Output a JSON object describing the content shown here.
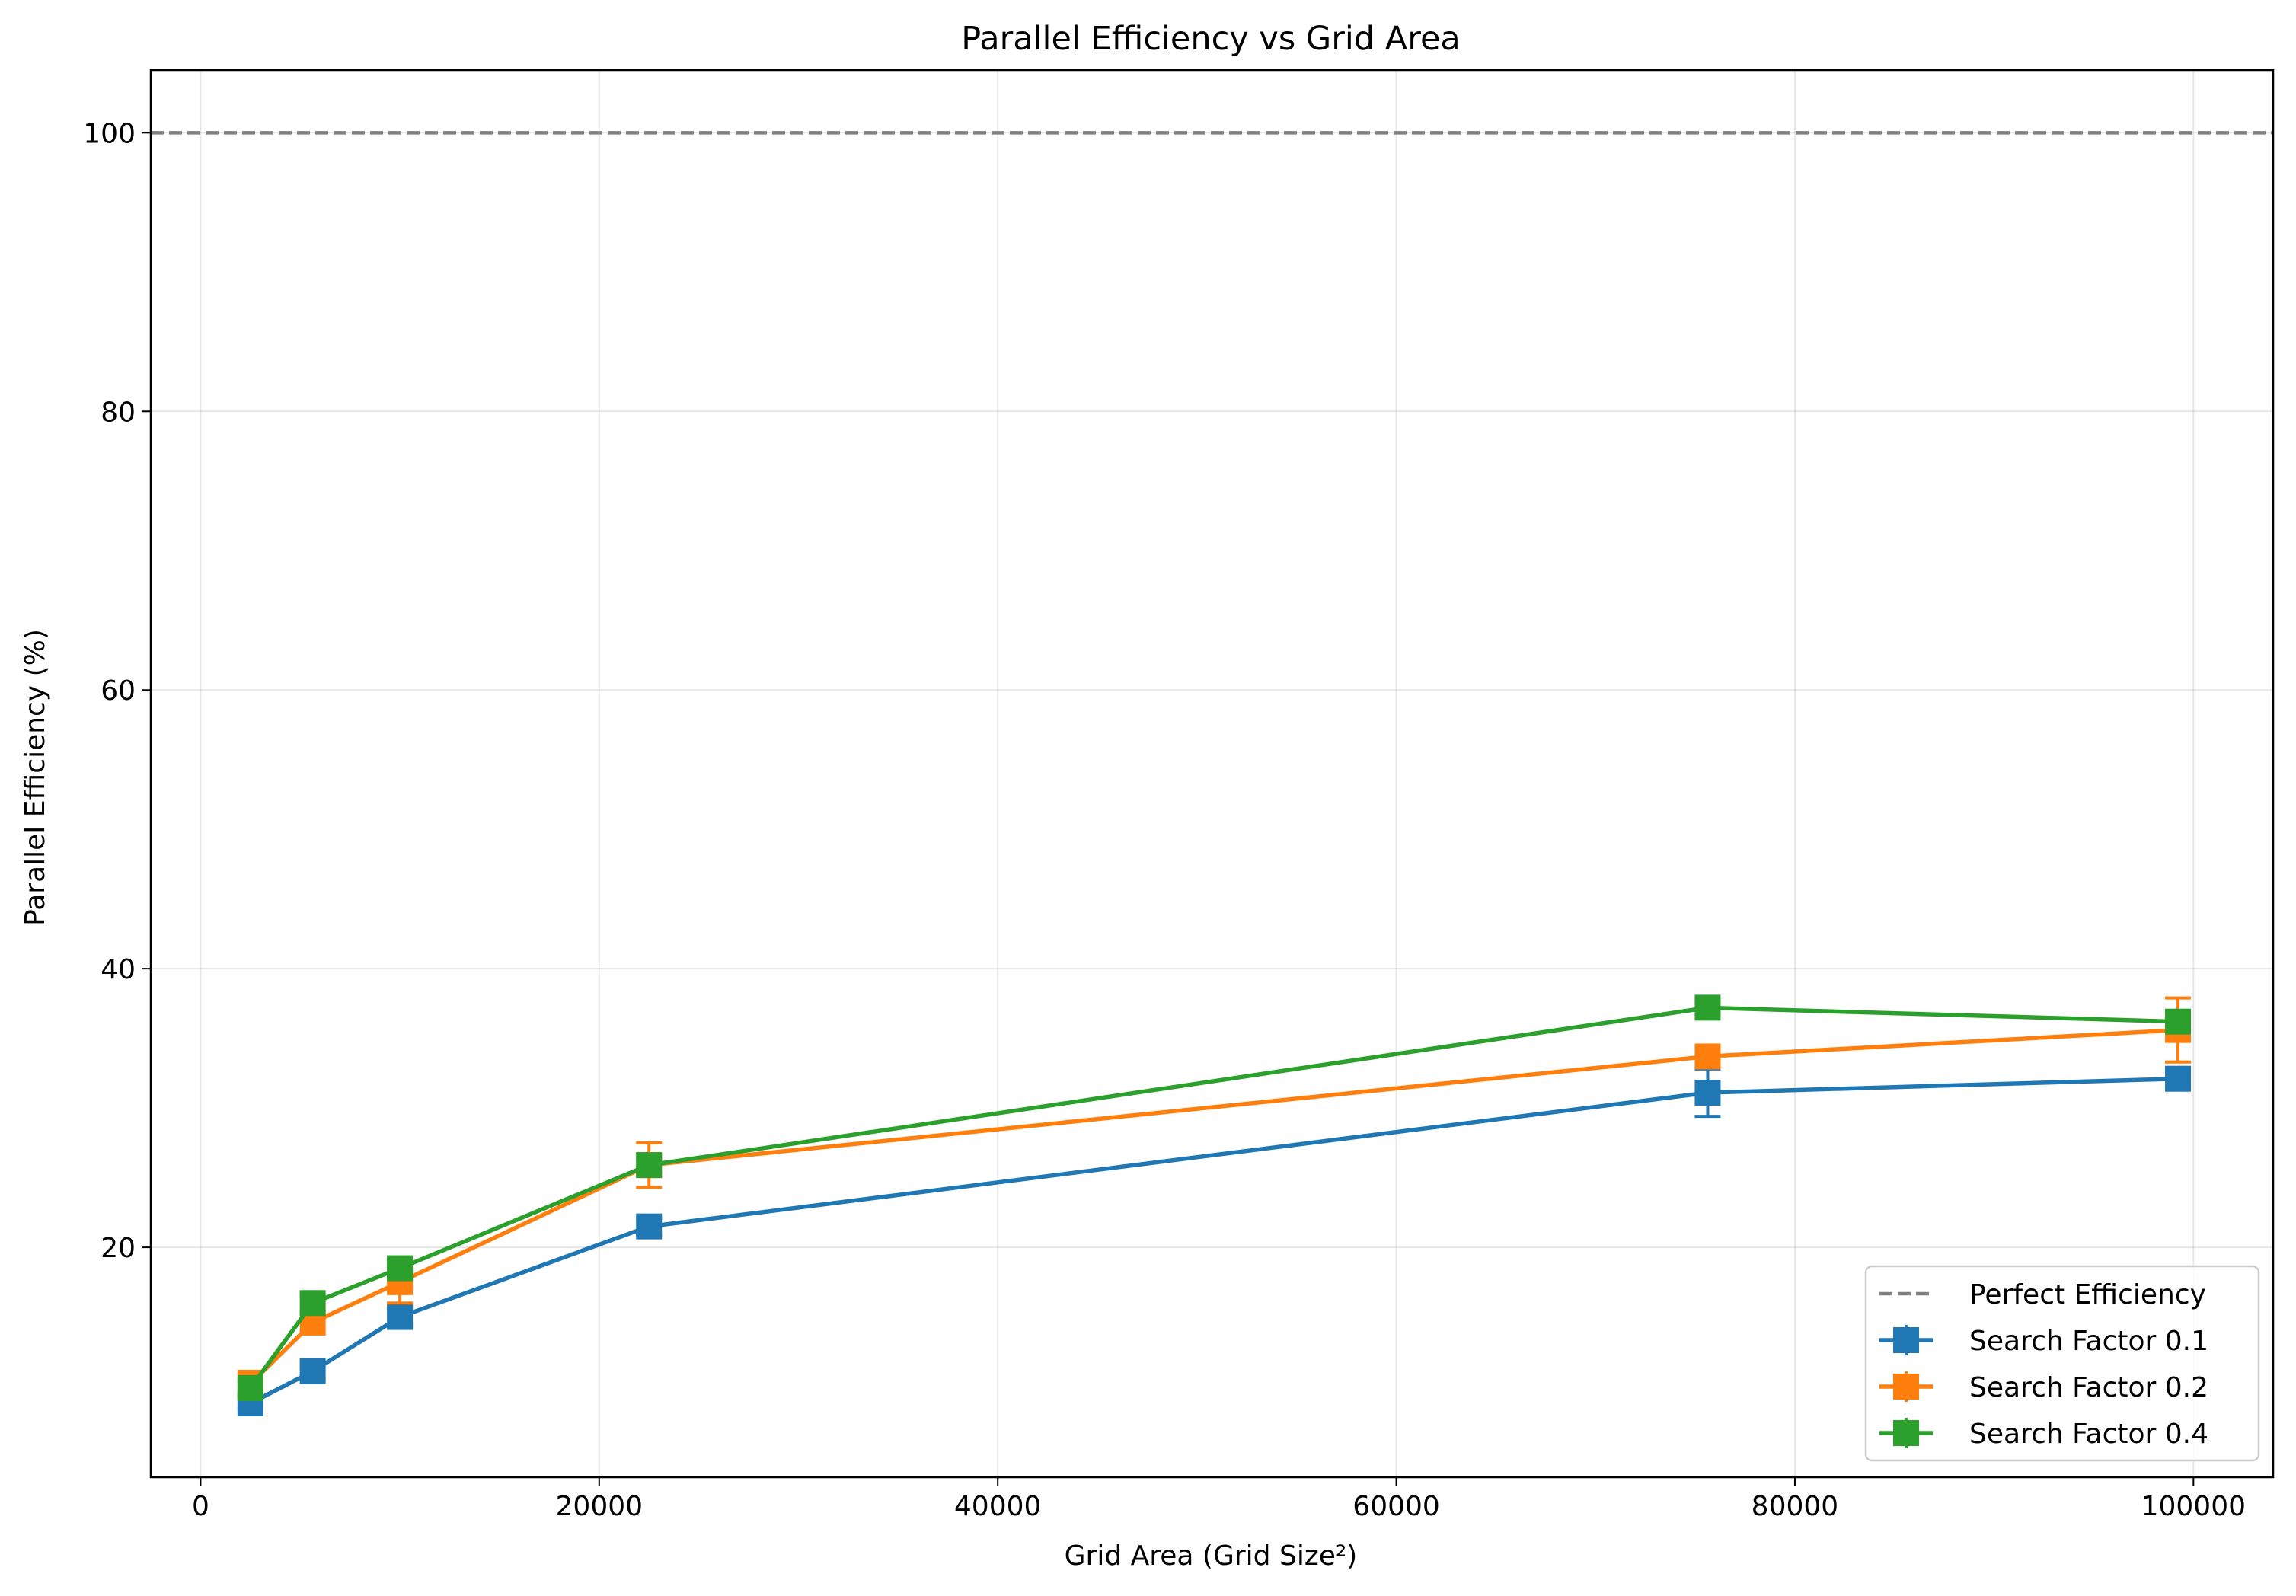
{
  "chart_data": {
    "type": "line",
    "title": "Parallel Efficiency vs Grid Area",
    "xlabel": "Grid Area (Grid Size²)",
    "ylabel": "Parallel Efficiency (%)",
    "xlim": [
      -2500,
      104000
    ],
    "ylim": [
      3.5,
      104.5
    ],
    "xticks": [
      0,
      20000,
      40000,
      60000,
      80000,
      100000
    ],
    "xtick_labels": [
      "0",
      "20000",
      "40000",
      "60000",
      "80000",
      "100000"
    ],
    "yticks": [
      20,
      40,
      60,
      80,
      100
    ],
    "ytick_labels": [
      "20",
      "40",
      "60",
      "80",
      "100"
    ],
    "grid": true,
    "legend_position": "bottom-right",
    "reference_line": {
      "name": "Perfect Efficiency",
      "y": 100,
      "color": "#808080",
      "style": "dashed"
    },
    "x": [
      2500,
      5625,
      10000,
      22500,
      75625,
      99225
    ],
    "series": [
      {
        "name": "Search Factor 0.1",
        "color": "#1f77b4",
        "values": [
          8.8,
          11.1,
          15.0,
          21.5,
          31.1,
          32.1
        ],
        "errors": [
          0.4,
          0.5,
          0.6,
          0.6,
          1.7,
          0.7
        ]
      },
      {
        "name": "Search Factor 0.2",
        "color": "#ff7f0e",
        "values": [
          10.2,
          14.6,
          17.5,
          25.9,
          33.7,
          35.6
        ],
        "errors": [
          0.9,
          0.8,
          1.5,
          1.6,
          0.7,
          2.3
        ]
      },
      {
        "name": "Search Factor 0.4",
        "color": "#2ca02c",
        "values": [
          9.9,
          16.0,
          18.5,
          25.9,
          37.2,
          36.2
        ],
        "errors": [
          0.5,
          0.6,
          0.6,
          0.5,
          0.5,
          0.6
        ]
      }
    ]
  }
}
